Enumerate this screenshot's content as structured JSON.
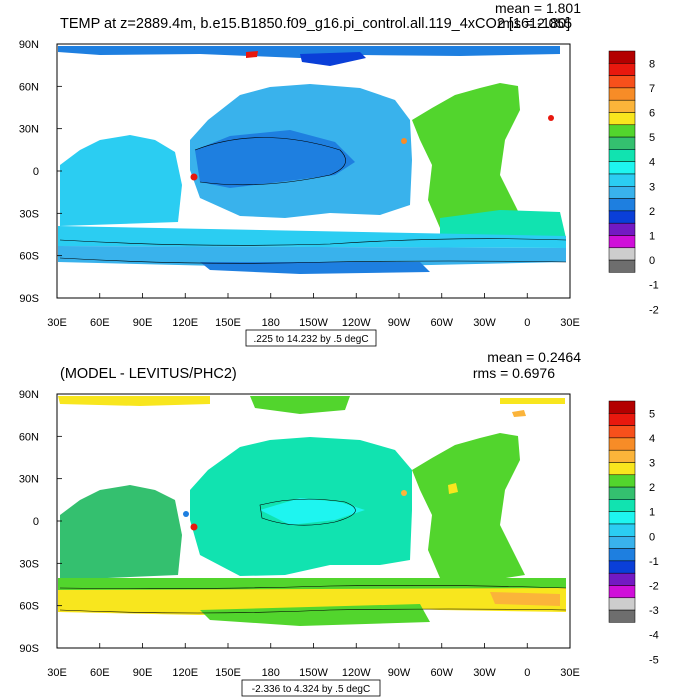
{
  "panels": [
    {
      "title": "TEMP at z=2889.4m, b.e15.B1850.f09_g16.pi_control.all.119_4xCO2 [161-180]",
      "stats": {
        "mean": "mean = 1.801",
        "rms": "rms = 2.055"
      },
      "contour_info": ".225 to 14.232 by .5 degC"
    },
    {
      "title": "(MODEL - LEVITUS/PHC2)",
      "stats": {
        "mean": "mean = 0.2464",
        "rms": "rms = 0.6976"
      },
      "contour_info": "-2.336 to 4.324 by .5 degC"
    }
  ],
  "chart_data": [
    {
      "type": "heatmap",
      "title": "TEMP at z=2889.4m, b.e15.B1850.f09_g16.pi_control.all.119_4xCO2 [161-180]",
      "mean": 1.801,
      "rms": 2.055,
      "units": "degC",
      "contour_range": [
        0.225,
        14.232
      ],
      "contour_interval": 0.5,
      "x_ticks": [
        "30E",
        "60E",
        "90E",
        "120E",
        "150E",
        "180",
        "150W",
        "120W",
        "90W",
        "60W",
        "30W",
        "0",
        "30E"
      ],
      "y_ticks": [
        "90N",
        "60N",
        "30N",
        "0",
        "30S",
        "60S",
        "90S"
      ],
      "colorbar": {
        "labels": [
          "8",
          "7",
          "6",
          "5",
          "4",
          "3",
          "2",
          "1",
          "0",
          "-1",
          "-2"
        ],
        "colors": [
          "#b30000",
          "#e8180e",
          "#f7501b",
          "#f78c27",
          "#fbb43a",
          "#f8e61e",
          "#52d52d",
          "#34c06f",
          "#11e3b0",
          "#1ef5f0",
          "#2bcdf2",
          "#39b2ec",
          "#1e7fe0",
          "#0a3fd8",
          "#7319c3",
          "#cf0fd9",
          "#cdcdcd",
          "#6e6e6e"
        ]
      }
    },
    {
      "type": "heatmap",
      "title": "(MODEL - LEVITUS/PHC2)",
      "mean": 0.2464,
      "rms": 0.6976,
      "units": "degC",
      "contour_range": [
        -2.336,
        4.324
      ],
      "contour_interval": 0.5,
      "x_ticks": [
        "30E",
        "60E",
        "90E",
        "120E",
        "150E",
        "180",
        "150W",
        "120W",
        "90W",
        "60W",
        "30W",
        "0",
        "30E"
      ],
      "y_ticks": [
        "90N",
        "60N",
        "30N",
        "0",
        "30S",
        "60S",
        "90S"
      ],
      "colorbar": {
        "labels": [
          "5",
          "4",
          "3",
          "2",
          "1",
          "0",
          "-1",
          "-2",
          "-3",
          "-4",
          "-5"
        ],
        "colors": [
          "#b30000",
          "#e8180e",
          "#f7501b",
          "#f78c27",
          "#fbb43a",
          "#f8e61e",
          "#52d52d",
          "#34c06f",
          "#11e3b0",
          "#1ef5f0",
          "#2bcdf2",
          "#39b2ec",
          "#1e7fe0",
          "#0a3fd8",
          "#7319c3",
          "#cf0fd9",
          "#cdcdcd",
          "#6e6e6e"
        ]
      }
    }
  ]
}
